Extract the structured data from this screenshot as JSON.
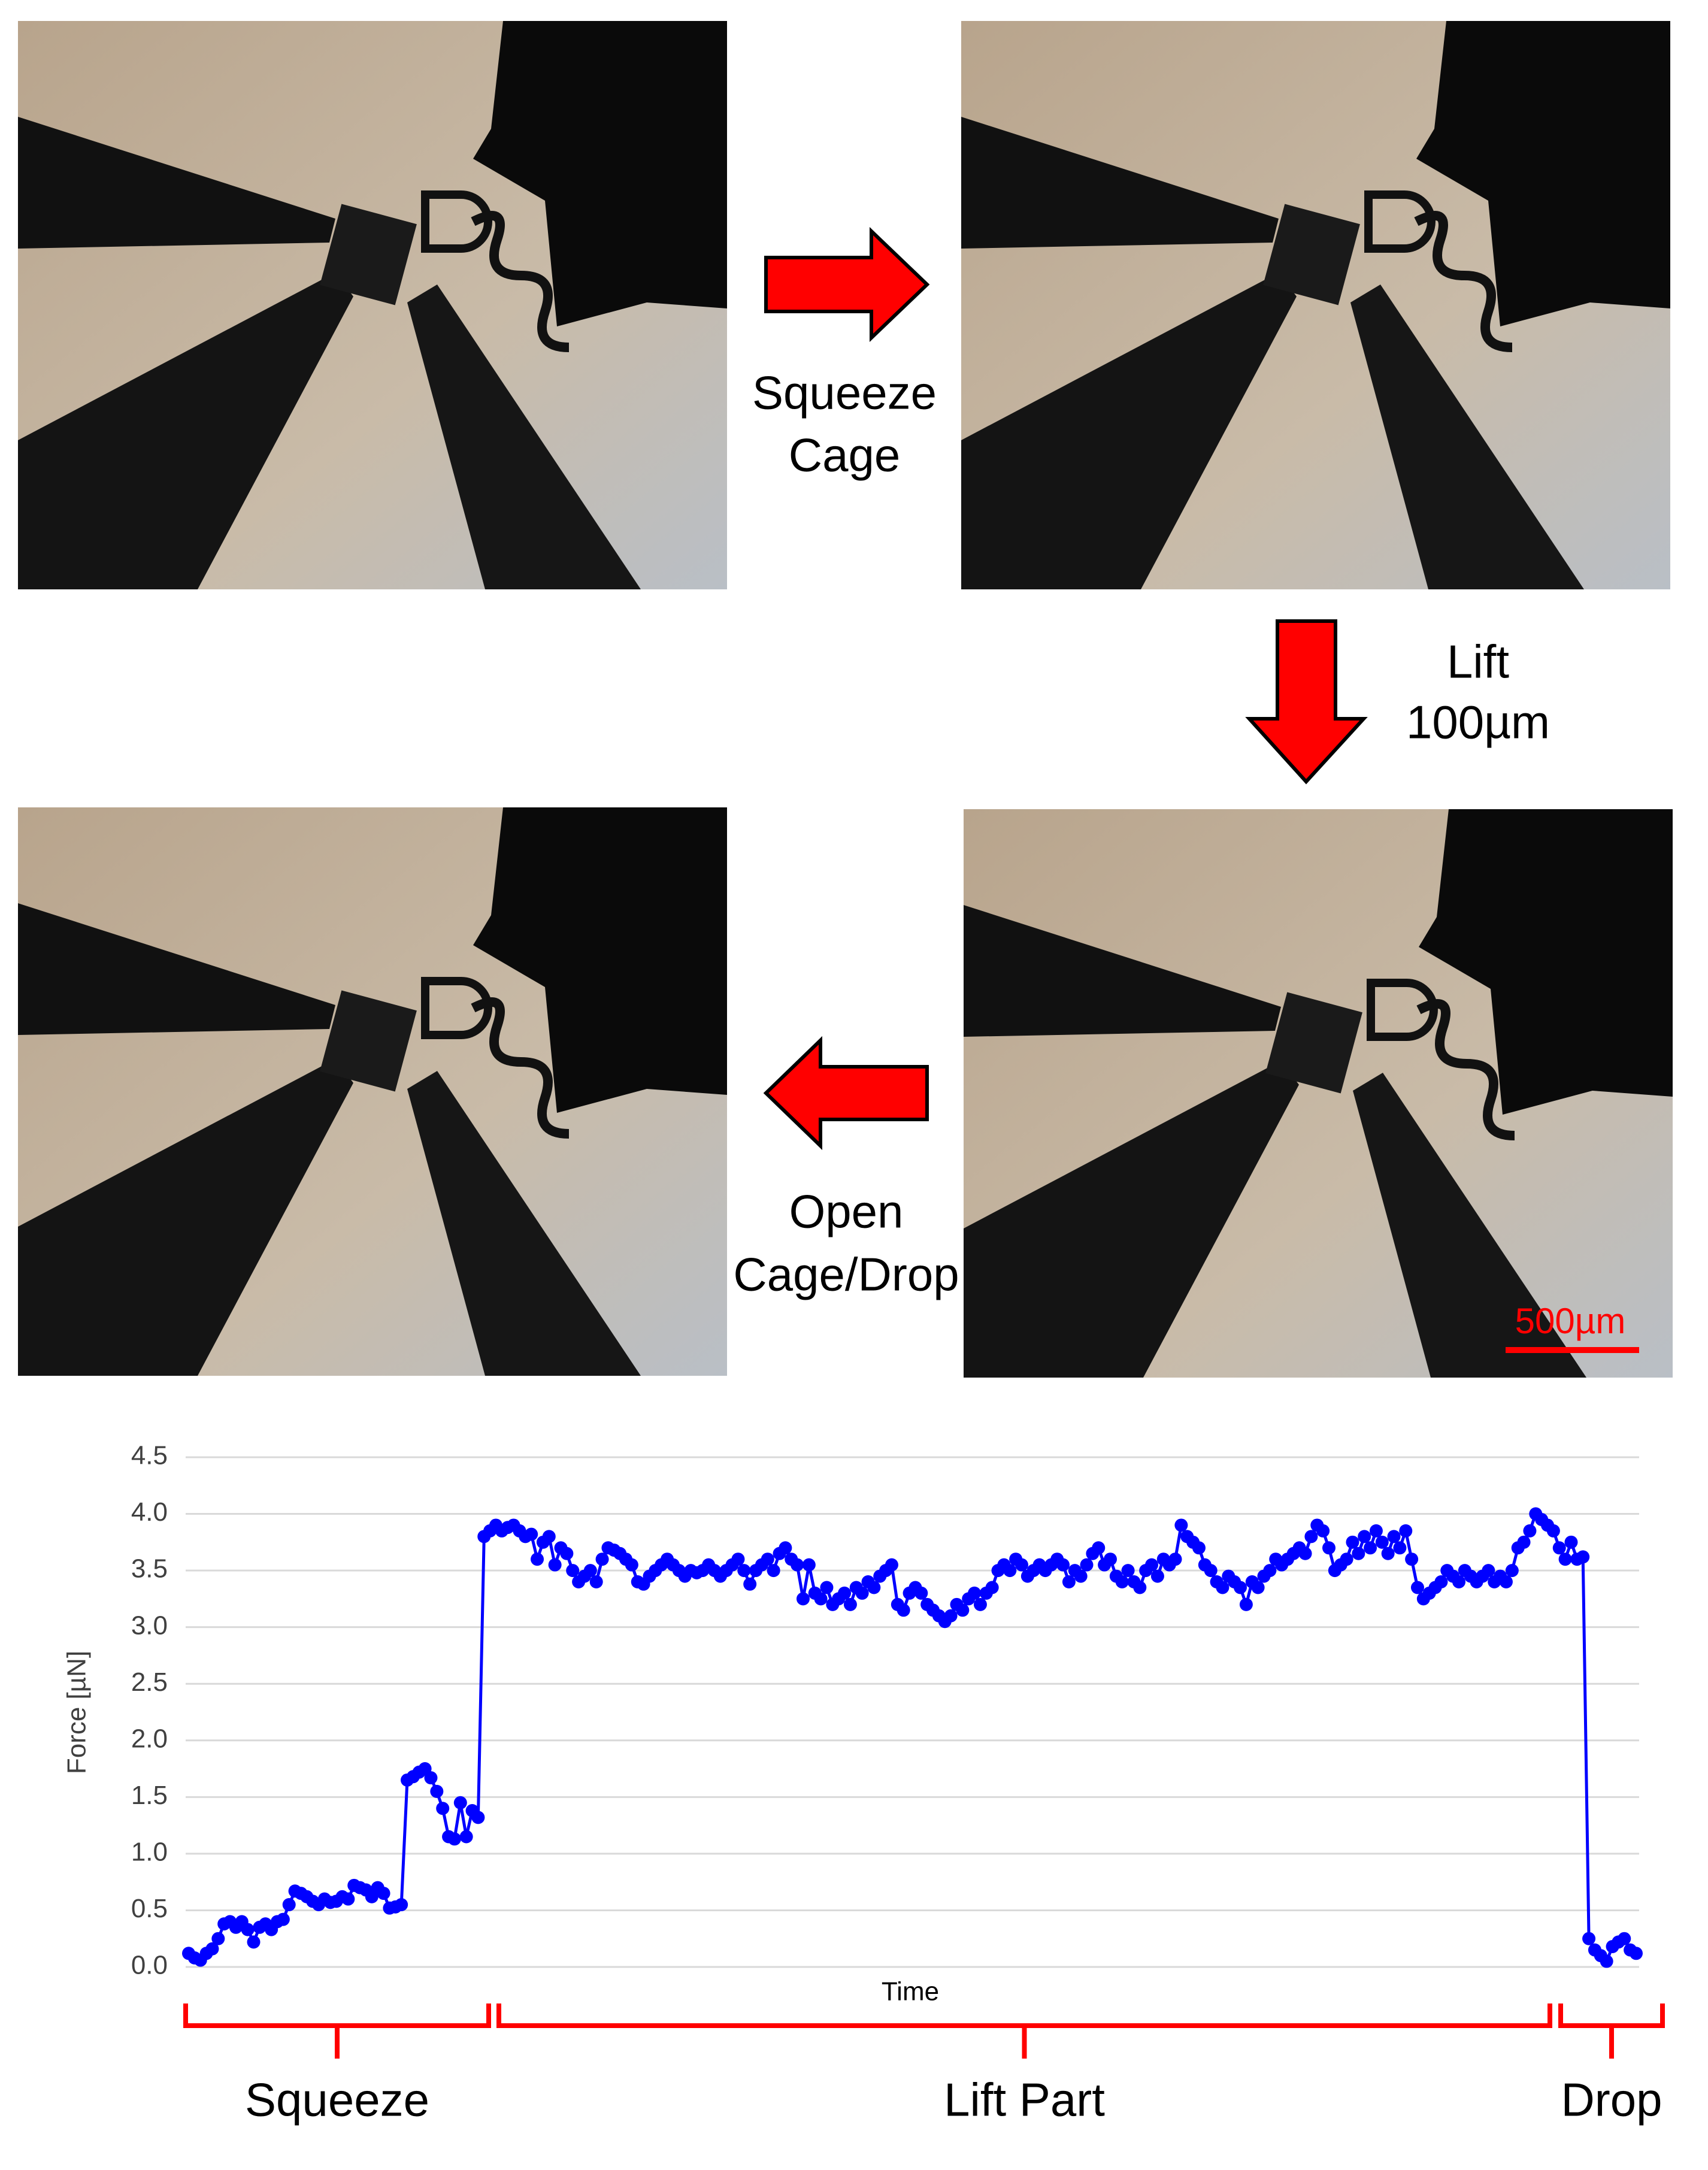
{
  "panels": {
    "arrow_labels": [
      [
        "Squeeze",
        "Cage"
      ],
      [
        "Lift",
        "100µm"
      ],
      [
        "Open",
        "Cage/Drop"
      ]
    ],
    "scale_bar": "500µm"
  },
  "chart_data": {
    "type": "line",
    "y_label": "Force [µN]",
    "x_label": "Time",
    "color": "#0000ff",
    "grid": true,
    "ylim": [
      0,
      4.5
    ],
    "yticks": [
      {
        "value": 0,
        "label": "0.0"
      },
      {
        "value": 0.5,
        "label": "0.5"
      },
      {
        "value": 1,
        "label": "1.0"
      },
      {
        "value": 1.5,
        "label": "1.5"
      },
      {
        "value": 2,
        "label": "2.0"
      },
      {
        "value": 2.5,
        "label": "2.5"
      },
      {
        "value": 3,
        "label": "3.0"
      },
      {
        "value": 3.5,
        "label": "3.5"
      },
      {
        "value": 4,
        "label": "4.0"
      },
      {
        "value": 4.5,
        "label": "4.5"
      }
    ],
    "annotations": [
      "Squeeze",
      "Lift Part",
      "Drop"
    ],
    "values": [
      0.12,
      0.08,
      0.06,
      0.12,
      0.16,
      0.25,
      0.38,
      0.4,
      0.35,
      0.4,
      0.33,
      0.22,
      0.35,
      0.38,
      0.33,
      0.4,
      0.42,
      0.55,
      0.67,
      0.65,
      0.62,
      0.58,
      0.55,
      0.6,
      0.57,
      0.58,
      0.62,
      0.6,
      0.72,
      0.7,
      0.68,
      0.62,
      0.7,
      0.65,
      0.52,
      0.53,
      0.55,
      1.65,
      1.68,
      1.72,
      1.75,
      1.67,
      1.55,
      1.4,
      1.15,
      1.13,
      1.45,
      1.15,
      1.38,
      1.32,
      3.8,
      3.85,
      3.9,
      3.85,
      3.88,
      3.9,
      3.85,
      3.8,
      3.82,
      3.6,
      3.75,
      3.8,
      3.55,
      3.7,
      3.65,
      3.5,
      3.4,
      3.45,
      3.5,
      3.4,
      3.6,
      3.7,
      3.68,
      3.65,
      3.6,
      3.55,
      3.4,
      3.38,
      3.45,
      3.5,
      3.55,
      3.6,
      3.55,
      3.5,
      3.45,
      3.5,
      3.48,
      3.5,
      3.55,
      3.5,
      3.45,
      3.5,
      3.55,
      3.6,
      3.5,
      3.38,
      3.5,
      3.55,
      3.6,
      3.5,
      3.65,
      3.7,
      3.6,
      3.55,
      3.25,
      3.55,
      3.3,
      3.25,
      3.35,
      3.2,
      3.25,
      3.3,
      3.2,
      3.35,
      3.3,
      3.4,
      3.35,
      3.45,
      3.5,
      3.55,
      3.2,
      3.15,
      3.3,
      3.35,
      3.3,
      3.2,
      3.15,
      3.1,
      3.05,
      3.1,
      3.2,
      3.15,
      3.25,
      3.3,
      3.2,
      3.3,
      3.35,
      3.5,
      3.55,
      3.5,
      3.6,
      3.55,
      3.45,
      3.5,
      3.55,
      3.5,
      3.55,
      3.6,
      3.55,
      3.4,
      3.5,
      3.45,
      3.55,
      3.65,
      3.7,
      3.55,
      3.6,
      3.45,
      3.4,
      3.5,
      3.4,
      3.35,
      3.5,
      3.55,
      3.45,
      3.6,
      3.55,
      3.6,
      3.9,
      3.8,
      3.75,
      3.7,
      3.55,
      3.5,
      3.4,
      3.35,
      3.45,
      3.4,
      3.35,
      3.2,
      3.4,
      3.35,
      3.45,
      3.5,
      3.6,
      3.55,
      3.6,
      3.65,
      3.7,
      3.65,
      3.8,
      3.9,
      3.85,
      3.7,
      3.5,
      3.55,
      3.6,
      3.75,
      3.65,
      3.8,
      3.7,
      3.85,
      3.75,
      3.65,
      3.8,
      3.7,
      3.85,
      3.6,
      3.35,
      3.25,
      3.3,
      3.35,
      3.4,
      3.5,
      3.45,
      3.4,
      3.5,
      3.45,
      3.4,
      3.45,
      3.5,
      3.4,
      3.45,
      3.4,
      3.5,
      3.7,
      3.75,
      3.85,
      4.0,
      3.95,
      3.9,
      3.85,
      3.7,
      3.6,
      3.75,
      3.6,
      3.62,
      0.25,
      0.15,
      0.1,
      0.05,
      0.18,
      0.22,
      0.25,
      0.15,
      0.12
    ]
  }
}
